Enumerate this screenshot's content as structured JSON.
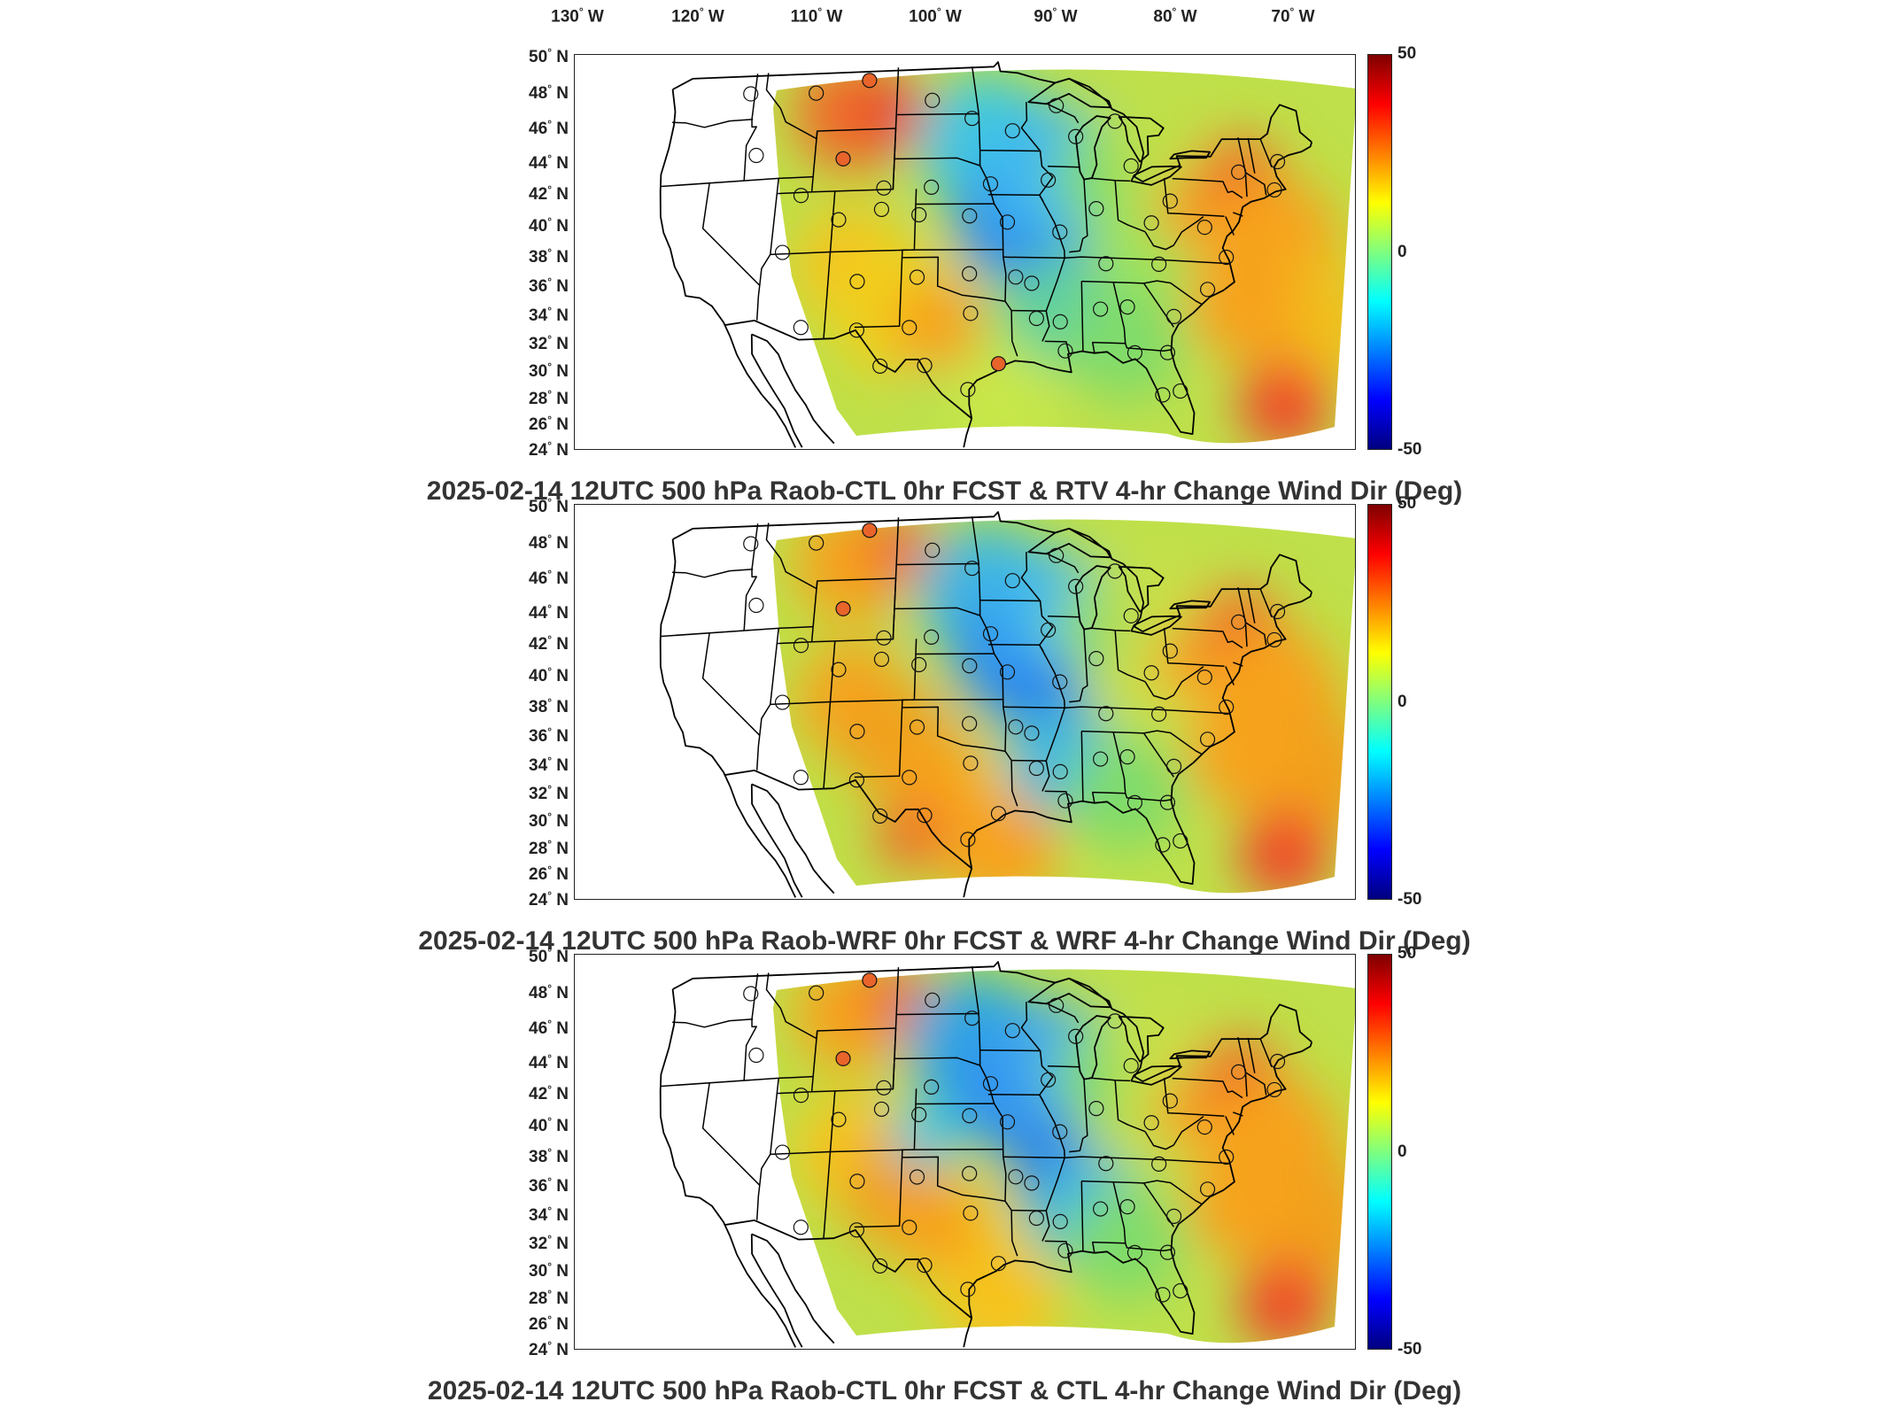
{
  "lon_labels": [
    {
      "deg": "130",
      "hemi": "W"
    },
    {
      "deg": "120",
      "hemi": "W"
    },
    {
      "deg": "110",
      "hemi": "W"
    },
    {
      "deg": "100",
      "hemi": "W"
    },
    {
      "deg": "90",
      "hemi": "W"
    },
    {
      "deg": "80",
      "hemi": "W"
    },
    {
      "deg": "70",
      "hemi": "W"
    }
  ],
  "lat_labels": [
    {
      "deg": "50",
      "hemi": "N"
    },
    {
      "deg": "48",
      "hemi": "N"
    },
    {
      "deg": "46",
      "hemi": "N"
    },
    {
      "deg": "44",
      "hemi": "N"
    },
    {
      "deg": "42",
      "hemi": "N"
    },
    {
      "deg": "40",
      "hemi": "N"
    },
    {
      "deg": "38",
      "hemi": "N"
    },
    {
      "deg": "36",
      "hemi": "N"
    },
    {
      "deg": "34",
      "hemi": "N"
    },
    {
      "deg": "32",
      "hemi": "N"
    },
    {
      "deg": "30",
      "hemi": "N"
    },
    {
      "deg": "28",
      "hemi": "N"
    },
    {
      "deg": "26",
      "hemi": "N"
    },
    {
      "deg": "24",
      "hemi": "N"
    }
  ],
  "colorbar": {
    "max_label": "50",
    "mid_label": "0",
    "min_label": "-50",
    "range": [
      -50,
      50
    ],
    "colormap": "jet"
  },
  "panels": [
    {
      "title": "2025-02-14 12UTC 500 hPa Raob-CTL 0hr FCST & RTV 4-hr Change Wind Dir (Deg)",
      "variant": "RTV"
    },
    {
      "title": "2025-02-14 12UTC 500 hPa Raob-WRF 0hr FCST & WRF 4-hr Change Wind Dir (Deg)",
      "variant": "WRF"
    },
    {
      "title": "2025-02-14 12UTC 500 hPa Raob-CTL 0hr FCST & CTL 4-hr Change Wind Dir (Deg)",
      "variant": "CTL"
    }
  ],
  "colors": {
    "field_red": "#e8452a",
    "field_orange": "#f7a21b",
    "field_yellow": "#f0e51e",
    "field_green": "#7fdc6a",
    "field_cyan": "#3fc8e0",
    "field_blue": "#2f8ef0",
    "field_darkblue": "#1050d8",
    "outline": "#000000"
  }
}
